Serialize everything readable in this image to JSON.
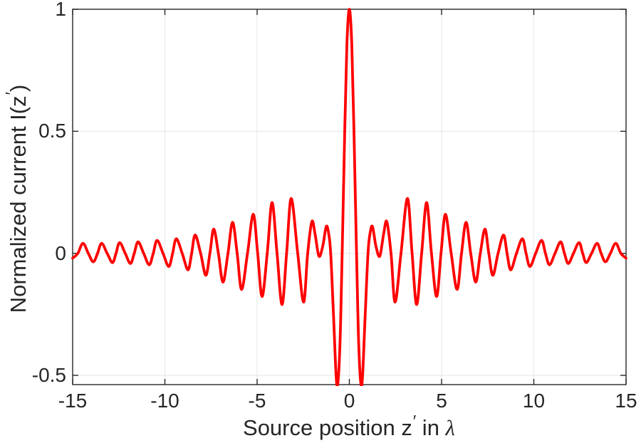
{
  "figure": {
    "background": "#ffffff"
  },
  "axis_style": {
    "box_color": "#262626",
    "grid_color": "#e6e6e6",
    "text_color": "#262626",
    "tick_length": 8,
    "grid_on": true
  },
  "labels": {
    "xlabel": {
      "pre": "Source position z",
      "prime": "′",
      "mid": " in ",
      "lambda": "λ"
    },
    "ylabel": {
      "pre": "Normalized current I(z",
      "prime": "′",
      "post": ")"
    }
  },
  "chart_data": {
    "type": "line",
    "title": "",
    "xlabel": "Source position z′ in λ",
    "ylabel": "Normalized current I(z′)",
    "xlim": [
      -15,
      15
    ],
    "ylim": [
      -0.538,
      1.0
    ],
    "xticks": {
      "values": [
        -15,
        -10,
        -5,
        0,
        5,
        10,
        15
      ],
      "labels": [
        "-15",
        "-10",
        "-5",
        "0",
        "5",
        "10",
        "15"
      ]
    },
    "yticks": {
      "values": [
        1,
        0.5,
        0,
        -0.5
      ],
      "labels": [
        "1",
        "0.5",
        "0",
        "-0.5"
      ]
    },
    "grid": true,
    "legend": null,
    "series": [
      {
        "name": "normalized current I(z')",
        "color": "#ff0000",
        "line_width": 3.8,
        "symmetry": "even",
        "note": "even function of z'; keypoints are [|z'| in lambda, I] at extrema and zero crossings; mirrored for negative z'",
        "keypoints_abs_z": [
          [
            0.0,
            1.0
          ],
          [
            0.13,
            0.86
          ],
          [
            0.25,
            0.5
          ],
          [
            0.39,
            0.0
          ],
          [
            0.52,
            -0.4
          ],
          [
            0.68,
            -0.538
          ],
          [
            0.86,
            -0.25
          ],
          [
            1.01,
            0.0
          ],
          [
            1.12,
            0.08
          ],
          [
            1.25,
            0.11
          ],
          [
            1.44,
            0.03
          ],
          [
            1.65,
            -0.012
          ],
          [
            1.86,
            0.08
          ],
          [
            2.03,
            0.13
          ],
          [
            2.26,
            0.0
          ],
          [
            2.48,
            -0.2
          ],
          [
            2.8,
            0.0
          ],
          [
            3.15,
            0.225
          ],
          [
            3.4,
            0.0
          ],
          [
            3.65,
            -0.21
          ],
          [
            3.92,
            0.0
          ],
          [
            4.19,
            0.208
          ],
          [
            4.45,
            0.0
          ],
          [
            4.73,
            -0.177
          ],
          [
            4.97,
            0.0
          ],
          [
            5.21,
            0.16
          ],
          [
            5.52,
            0.0
          ],
          [
            5.84,
            -0.148
          ],
          [
            6.08,
            0.0
          ],
          [
            6.33,
            0.127
          ],
          [
            6.58,
            0.0
          ],
          [
            6.85,
            -0.118
          ],
          [
            7.1,
            0.0
          ],
          [
            7.35,
            0.099
          ],
          [
            7.56,
            0.0
          ],
          [
            7.78,
            -0.09
          ],
          [
            8.06,
            0.0
          ],
          [
            8.36,
            0.075
          ],
          [
            8.55,
            0.0
          ],
          [
            8.75,
            -0.068
          ],
          [
            9.06,
            0.0
          ],
          [
            9.38,
            0.06
          ],
          [
            9.58,
            0.0
          ],
          [
            9.79,
            -0.054
          ],
          [
            10.1,
            0.0
          ],
          [
            10.42,
            0.053
          ],
          [
            10.63,
            0.0
          ],
          [
            10.85,
            -0.047
          ],
          [
            11.15,
            0.0
          ],
          [
            11.45,
            0.047
          ],
          [
            11.66,
            0.0
          ],
          [
            11.87,
            -0.042
          ],
          [
            12.15,
            0.0
          ],
          [
            12.45,
            0.044
          ],
          [
            12.65,
            0.0
          ],
          [
            12.84,
            -0.038
          ],
          [
            13.13,
            0.0
          ],
          [
            13.43,
            0.041
          ],
          [
            13.65,
            0.0
          ],
          [
            13.88,
            -0.035
          ],
          [
            14.15,
            0.0
          ],
          [
            14.44,
            0.041
          ],
          [
            14.72,
            0.0
          ],
          [
            15.0,
            -0.02
          ]
        ]
      }
    ]
  }
}
